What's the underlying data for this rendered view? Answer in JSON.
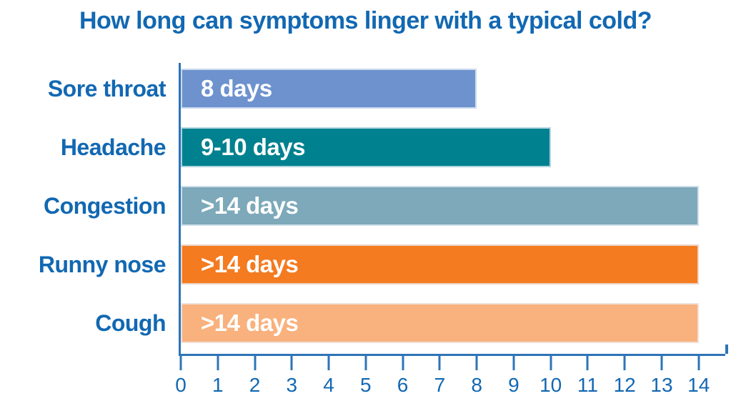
{
  "chart_data": {
    "type": "bar",
    "orientation": "horizontal",
    "title": "How long can symptoms linger with a typical cold?",
    "categories": [
      "Sore throat",
      "Headache",
      "Congestion",
      "Runny nose",
      "Cough"
    ],
    "bars": [
      {
        "category": "Sore throat",
        "label": "8 days",
        "value": 8,
        "color": "#6D92CE"
      },
      {
        "category": "Headache",
        "label": "9-10 days",
        "value": 10,
        "color": "#00818F"
      },
      {
        "category": "Congestion",
        "label": ">14 days",
        "value": 14,
        "color": "#7DA9BA"
      },
      {
        "category": "Runny nose",
        "label": ">14 days",
        "value": 14,
        "color": "#F47B20"
      },
      {
        "category": "Cough",
        "label": ">14 days",
        "value": 14,
        "color": "#F9B17D"
      }
    ],
    "x_ticks": [
      0,
      1,
      2,
      3,
      4,
      5,
      6,
      7,
      8,
      9,
      10,
      11,
      12,
      13,
      14
    ],
    "xlim": [
      0,
      14.72
    ],
    "xlabel": "",
    "ylabel": "",
    "grid": false,
    "legend": false,
    "colors": {
      "title_text": "#1268B2",
      "category_text": "#1268B2",
      "tick_text": "#1268B2",
      "axis_line": "#2E74B8",
      "bar_value_text": "#FFFFFF"
    }
  }
}
